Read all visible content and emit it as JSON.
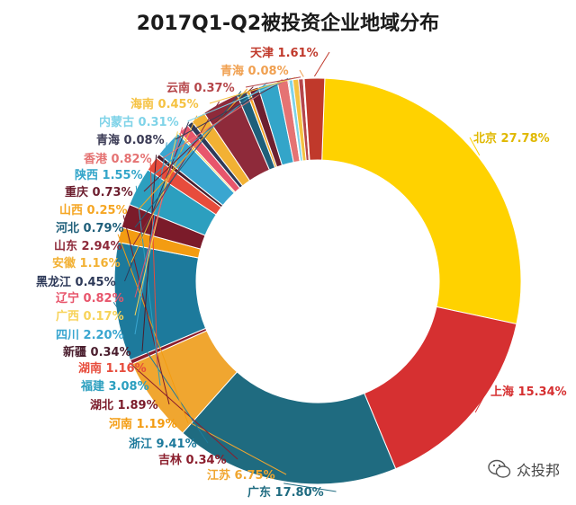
{
  "chart_data": {
    "type": "pie",
    "title": "2017Q1-Q2被投资企业地域分布",
    "slices": [
      {
        "label": "北京",
        "value": 27.78,
        "display": "北京 27.78%",
        "color": "#FFD200"
      },
      {
        "label": "上海",
        "value": 15.34,
        "display": "上海 15.34%",
        "color": "#D63031"
      },
      {
        "label": "广东",
        "value": 17.8,
        "display": "广东 17.80%",
        "color": "#1F6B80"
      },
      {
        "label": "江苏",
        "value": 6.75,
        "display": "江苏 6.75%",
        "color": "#F0A630"
      },
      {
        "label": "吉林",
        "value": 0.34,
        "display": "吉林 0.34%",
        "color": "#8B1E2D"
      },
      {
        "label": "浙江",
        "value": 9.41,
        "display": "浙江 9.41%",
        "color": "#1D7A9C"
      },
      {
        "label": "河南",
        "value": 1.19,
        "display": "河南 1.19%",
        "color": "#F39C12"
      },
      {
        "label": "湖北",
        "value": 1.89,
        "display": "湖北 1.89%",
        "color": "#7B1B2A"
      },
      {
        "label": "福建",
        "value": 3.08,
        "display": "福建 3.08%",
        "color": "#2C9FBF"
      },
      {
        "label": "湖南",
        "value": 1.16,
        "display": "湖南 1.16%",
        "color": "#E74C3C"
      },
      {
        "label": "新疆",
        "value": 0.34,
        "display": "新疆 0.34%",
        "color": "#4A1E2E"
      },
      {
        "label": "四川",
        "value": 2.2,
        "display": "四川 2.20%",
        "color": "#3AA6D0"
      },
      {
        "label": "广西",
        "value": 0.17,
        "display": "广西 0.17%",
        "color": "#F7D35A"
      },
      {
        "label": "辽宁",
        "value": 0.82,
        "display": "辽宁 0.82%",
        "color": "#E8566C"
      },
      {
        "label": "黑龙江",
        "value": 0.45,
        "display": "黑龙江 0.45%",
        "color": "#2E3A59"
      },
      {
        "label": "安徽",
        "value": 1.16,
        "display": "安徽 1.16%",
        "color": "#F2B134"
      },
      {
        "label": "山东",
        "value": 2.94,
        "display": "山东 2.94%",
        "color": "#8E2A3A"
      },
      {
        "label": "河北",
        "value": 0.79,
        "display": "河北 0.79%",
        "color": "#1F5F7A"
      },
      {
        "label": "山西",
        "value": 0.25,
        "display": "山西 0.25%",
        "color": "#F5A623"
      },
      {
        "label": "重庆",
        "value": 0.73,
        "display": "重庆 0.73%",
        "color": "#6D1F2F"
      },
      {
        "label": "陕西",
        "value": 1.55,
        "display": "陕西 1.55%",
        "color": "#33A5C9"
      },
      {
        "label": "香港",
        "value": 0.82,
        "display": "香港 0.82%",
        "color": "#E57373"
      },
      {
        "label": "青海",
        "value": 0.08,
        "display": "青海 0.08%",
        "color": "#3B3B55"
      },
      {
        "label": "内蒙古",
        "value": 0.31,
        "display": "内蒙古 0.31%",
        "color": "#7FD3E8"
      },
      {
        "label": "海南",
        "value": 0.45,
        "display": "海南 0.45%",
        "color": "#F5C242"
      },
      {
        "label": "云南",
        "value": 0.37,
        "display": "云南 0.37%",
        "color": "#B5464A"
      },
      {
        "label": "青海",
        "value": 0.08,
        "display": "青海 0.08%",
        "color": "#F0A050"
      },
      {
        "label": "天津",
        "value": 1.61,
        "display": "天津 1.61%",
        "color": "#C0392B"
      }
    ]
  },
  "watermark": {
    "text": "众投邦"
  }
}
